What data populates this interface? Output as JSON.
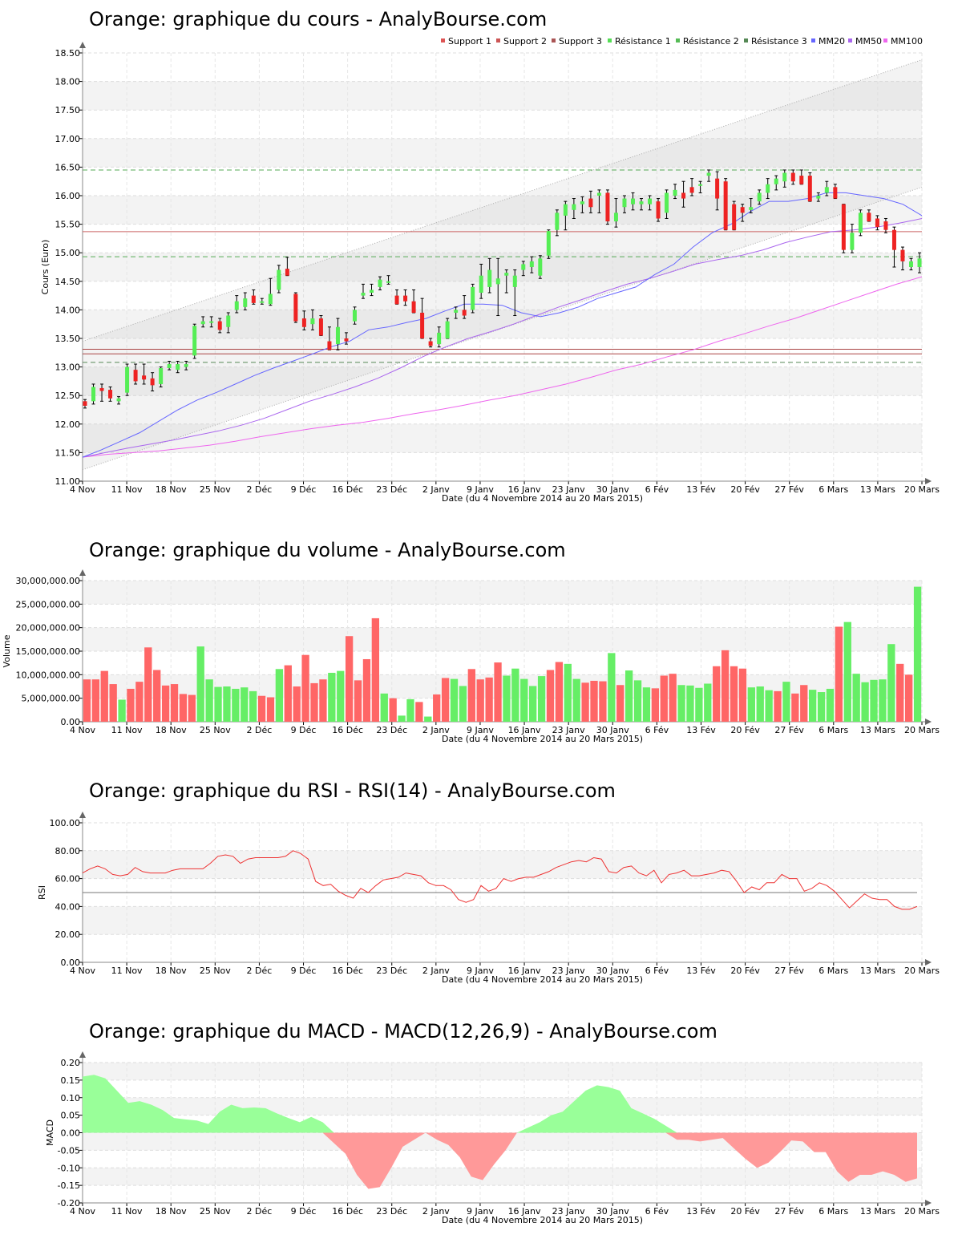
{
  "dates": [
    "4 Nov",
    "11 Nov",
    "18 Nov",
    "25 Nov",
    "2 Déc",
    "9 Déc",
    "16 Déc",
    "23 Déc",
    "2 Janv",
    "9 Janv",
    "16 Janv",
    "23 Janv",
    "30 Janv",
    "6 Fév",
    "13 Fév",
    "20 Fév",
    "27 Fév",
    "6 Mars",
    "13 Mars",
    "20 Mars"
  ],
  "x_axis_label": "Date (du 4 Novembre 2014 au 20 Mars 2015)",
  "colors": {
    "up": "#55ee55",
    "down": "#ee2222",
    "vol_up": "#66ee66",
    "vol_down": "#ff6666",
    "mm20": "#6666ff",
    "mm50": "#aa66ee",
    "mm100": "#ee66ee",
    "rsi": "#ee3333",
    "macd_pos": "#99ff99",
    "macd_neg": "#ff9999"
  },
  "chart_data": [
    {
      "type": "candlestick",
      "title": "Orange: graphique du cours - AnalyBourse.com",
      "ylabel": "Cours (Euro)",
      "xlabel": "Date (du 4 Novembre 2014 au 20 Mars 2015)",
      "ylim": [
        11.0,
        18.5
      ],
      "yticks": [
        "11.00",
        "11.50",
        "12.00",
        "12.50",
        "13.00",
        "13.50",
        "14.00",
        "14.50",
        "15.00",
        "15.50",
        "16.00",
        "16.50",
        "17.00",
        "17.50",
        "18.00",
        "18.50"
      ],
      "legend": [
        "Support 1",
        "Support 2",
        "Support 3",
        "Résistance 1",
        "Résistance 2",
        "Résistance 3",
        "MM20",
        "MM50",
        "MM100"
      ],
      "levels": {
        "support_1": 15.37,
        "support_2": 13.31,
        "support_3": 13.23,
        "resistance_1": 16.45,
        "resistance_2": 14.93,
        "resistance_3": 13.08
      },
      "ohlc": [
        [
          12.4,
          12.43,
          12.28,
          12.32
        ],
        [
          12.4,
          12.7,
          12.35,
          12.65
        ],
        [
          12.63,
          12.7,
          12.4,
          12.58
        ],
        [
          12.6,
          12.65,
          12.4,
          12.45
        ],
        [
          12.4,
          12.48,
          12.35,
          12.45
        ],
        [
          12.55,
          13.05,
          12.5,
          13.0
        ],
        [
          12.95,
          13.05,
          12.7,
          12.75
        ],
        [
          12.85,
          13.05,
          12.7,
          12.78
        ],
        [
          12.8,
          12.9,
          12.58,
          12.68
        ],
        [
          12.7,
          13.0,
          12.65,
          12.98
        ],
        [
          12.98,
          13.1,
          12.95,
          13.05
        ],
        [
          12.95,
          13.1,
          12.9,
          13.05
        ],
        [
          13.0,
          13.1,
          12.95,
          13.05
        ],
        [
          13.2,
          13.75,
          13.15,
          13.72
        ],
        [
          13.75,
          13.88,
          13.7,
          13.8
        ],
        [
          13.78,
          13.88,
          13.7,
          13.8
        ],
        [
          13.8,
          13.85,
          13.6,
          13.65
        ],
        [
          13.7,
          13.95,
          13.6,
          13.9
        ],
        [
          14.0,
          14.25,
          13.95,
          14.15
        ],
        [
          14.05,
          14.3,
          14.0,
          14.2
        ],
        [
          14.25,
          14.35,
          14.1,
          14.12
        ],
        [
          14.15,
          14.2,
          14.1,
          14.15
        ],
        [
          14.1,
          14.55,
          14.08,
          14.28
        ],
        [
          14.35,
          14.78,
          14.3,
          14.7
        ],
        [
          14.72,
          14.92,
          14.6,
          14.6
        ],
        [
          14.28,
          14.3,
          13.78,
          13.8
        ],
        [
          13.85,
          13.98,
          13.65,
          13.7
        ],
        [
          13.75,
          14.0,
          13.65,
          13.85
        ],
        [
          13.85,
          13.9,
          13.55,
          13.55
        ],
        [
          13.45,
          13.7,
          13.3,
          13.3
        ],
        [
          13.4,
          13.85,
          13.3,
          13.7
        ],
        [
          13.5,
          13.6,
          13.4,
          13.45
        ],
        [
          13.8,
          14.05,
          13.75,
          14.0
        ],
        [
          14.25,
          14.45,
          14.2,
          14.3
        ],
        [
          14.3,
          14.45,
          14.25,
          14.35
        ],
        [
          14.4,
          14.58,
          14.35,
          14.53
        ],
        [
          14.5,
          14.6,
          14.45,
          14.5
        ],
        [
          14.25,
          14.35,
          14.1,
          14.1
        ],
        [
          14.25,
          14.35,
          14.08,
          14.15
        ],
        [
          14.15,
          14.35,
          13.95,
          13.95
        ],
        [
          13.95,
          14.2,
          13.5,
          13.5
        ],
        [
          13.45,
          13.5,
          13.35,
          13.37
        ],
        [
          13.4,
          13.7,
          13.35,
          13.6
        ],
        [
          13.5,
          13.85,
          13.5,
          13.8
        ],
        [
          13.95,
          14.05,
          13.85,
          14.0
        ],
        [
          14.0,
          14.25,
          13.85,
          13.9
        ],
        [
          14.0,
          14.45,
          13.95,
          14.4
        ],
        [
          14.3,
          14.8,
          14.2,
          14.6
        ],
        [
          14.4,
          14.9,
          14.3,
          14.7
        ],
        [
          14.45,
          14.9,
          13.9,
          14.55
        ],
        [
          14.6,
          14.7,
          14.3,
          14.65
        ],
        [
          14.4,
          14.7,
          13.9,
          14.6
        ],
        [
          14.7,
          14.85,
          14.6,
          14.8
        ],
        [
          14.75,
          14.93,
          14.65,
          14.85
        ],
        [
          14.6,
          14.95,
          14.55,
          14.9
        ],
        [
          14.95,
          15.4,
          14.9,
          15.38
        ],
        [
          15.4,
          15.75,
          15.3,
          15.7
        ],
        [
          15.65,
          15.9,
          15.4,
          15.85
        ],
        [
          15.75,
          15.95,
          15.6,
          15.85
        ],
        [
          15.85,
          15.98,
          15.7,
          15.9
        ],
        [
          15.95,
          16.08,
          15.7,
          15.8
        ],
        [
          16.0,
          16.1,
          15.7,
          16.05
        ],
        [
          16.05,
          16.1,
          15.5,
          15.55
        ],
        [
          15.55,
          15.95,
          15.45,
          15.7
        ],
        [
          15.8,
          16.0,
          15.7,
          15.95
        ],
        [
          15.85,
          16.05,
          15.75,
          15.95
        ],
        [
          15.85,
          15.95,
          15.75,
          15.9
        ],
        [
          15.85,
          16.0,
          15.75,
          15.95
        ],
        [
          15.9,
          15.95,
          15.55,
          15.6
        ],
        [
          15.7,
          16.1,
          15.6,
          16.05
        ],
        [
          16.0,
          16.2,
          15.95,
          16.1
        ],
        [
          16.05,
          16.25,
          15.8,
          15.95
        ],
        [
          16.15,
          16.3,
          16.0,
          16.05
        ],
        [
          16.2,
          16.25,
          16.05,
          16.2
        ],
        [
          16.35,
          16.45,
          16.25,
          16.4
        ],
        [
          16.3,
          16.42,
          15.75,
          15.95
        ],
        [
          16.25,
          16.3,
          15.4,
          15.4
        ],
        [
          15.85,
          15.9,
          15.4,
          15.4
        ],
        [
          15.8,
          15.85,
          15.55,
          15.7
        ],
        [
          15.75,
          15.95,
          15.7,
          15.8
        ],
        [
          15.9,
          16.1,
          15.85,
          16.05
        ],
        [
          16.05,
          16.3,
          15.95,
          16.2
        ],
        [
          16.2,
          16.35,
          16.1,
          16.3
        ],
        [
          16.25,
          16.45,
          16.15,
          16.4
        ],
        [
          16.4,
          16.45,
          16.2,
          16.25
        ],
        [
          16.35,
          16.45,
          16.2,
          16.2
        ],
        [
          16.35,
          16.4,
          15.9,
          15.9
        ],
        [
          15.95,
          16.05,
          15.9,
          16.0
        ],
        [
          16.05,
          16.25,
          16.0,
          16.15
        ],
        [
          16.15,
          16.2,
          15.95,
          15.95
        ],
        [
          15.85,
          15.85,
          15.0,
          15.05
        ],
        [
          15.05,
          15.5,
          15.0,
          15.35
        ],
        [
          15.35,
          15.75,
          15.3,
          15.7
        ],
        [
          15.7,
          15.75,
          15.55,
          15.55
        ],
        [
          15.6,
          15.65,
          15.4,
          15.45
        ],
        [
          15.55,
          15.6,
          15.35,
          15.4
        ],
        [
          15.4,
          15.45,
          14.75,
          15.05
        ],
        [
          15.05,
          15.1,
          14.7,
          14.85
        ],
        [
          14.75,
          14.9,
          14.7,
          14.85
        ],
        [
          14.75,
          15.0,
          14.65,
          14.9
        ]
      ],
      "mm20": [
        11.42,
        11.55,
        11.7,
        11.85,
        12.05,
        12.25,
        12.42,
        12.55,
        12.7,
        12.85,
        12.98,
        13.1,
        13.22,
        13.35,
        13.45,
        13.65,
        13.7,
        13.78,
        13.85,
        13.98,
        14.1,
        14.1,
        14.08,
        13.95,
        13.88,
        13.95,
        14.05,
        14.2,
        14.3,
        14.4,
        14.62,
        14.8,
        15.1,
        15.35,
        15.5,
        15.72,
        15.9,
        15.9,
        15.95,
        16.05,
        16.05,
        16.0,
        15.95,
        15.85,
        15.65
      ],
      "mm50": [
        11.42,
        11.5,
        11.58,
        11.65,
        11.72,
        11.8,
        11.88,
        11.98,
        12.1,
        12.25,
        12.4,
        12.52,
        12.65,
        12.8,
        12.98,
        13.18,
        13.35,
        13.5,
        13.62,
        13.75,
        13.9,
        14.05,
        14.18,
        14.32,
        14.45,
        14.55,
        14.67,
        14.8,
        14.88,
        14.95,
        15.05,
        15.18,
        15.28,
        15.37,
        15.4,
        15.45,
        15.52,
        15.6
      ],
      "mm100": [
        11.42,
        11.47,
        11.5,
        11.53,
        11.58,
        11.63,
        11.7,
        11.78,
        11.85,
        11.92,
        11.98,
        12.03,
        12.1,
        12.18,
        12.25,
        12.33,
        12.42,
        12.5,
        12.6,
        12.7,
        12.82,
        12.95,
        13.05,
        13.18,
        13.3,
        13.45,
        13.58,
        13.72,
        13.85,
        14.0,
        14.15,
        14.3,
        14.45,
        14.58
      ],
      "channel_upper": [
        13.45,
        18.38
      ],
      "channel_lower": [
        11.2,
        16.15
      ]
    },
    {
      "type": "bar",
      "title": "Orange: graphique du volume - AnalyBourse.com",
      "ylabel": "Volume",
      "xlabel": "Date (du 4 Novembre 2014 au 20 Mars 2015)",
      "ylim": [
        0,
        30000000
      ],
      "yticks": [
        "0.00",
        "5,000,000.00",
        "10,000,000.00",
        "15,000,000.00",
        "20,000,000.00",
        "25,000,000.00",
        "30,000,000.00"
      ],
      "values": [
        9.0,
        9.0,
        10.8,
        8.0,
        4.7,
        7.0,
        8.5,
        15.8,
        11.0,
        7.7,
        8.0,
        5.9,
        5.7,
        16.0,
        9.0,
        7.4,
        7.5,
        7.0,
        7.3,
        6.5,
        5.5,
        5.2,
        11.2,
        12.0,
        7.5,
        14.2,
        8.2,
        9.0,
        10.4,
        10.8,
        18.2,
        8.8,
        13.3,
        22.0,
        6.0,
        5.0,
        1.3,
        4.8,
        4.2,
        1.1,
        5.8,
        9.3,
        9.1,
        7.6,
        11.2,
        9.0,
        9.4,
        12.6,
        9.8,
        11.3,
        9.1,
        7.6,
        9.7,
        11.0,
        12.7,
        12.3,
        9.1,
        8.3,
        8.7,
        8.6,
        14.6,
        7.8,
        10.9,
        8.8,
        7.3,
        7.1,
        9.8,
        10.2,
        7.8,
        7.7,
        7.2,
        8.1,
        11.8,
        15.2,
        11.8,
        11.3,
        7.3,
        7.5,
        6.7,
        6.5,
        8.5,
        6.0,
        7.8,
        6.8,
        6.3,
        7.0,
        20.2,
        21.2,
        10.2,
        8.4,
        8.9,
        9.0,
        16.5,
        12.3,
        10.0,
        28.7
      ],
      "directions": "ddddudddddddduuuuuuudduddddduudddduduududduudddduuuuudduuddduduuuddduuuudddduuududduuuduuuuuuddu"
    },
    {
      "type": "line",
      "title": "Orange: graphique du RSI - RSI(14) - AnalyBourse.com",
      "ylabel": "RSI",
      "xlabel": "Date (du 4 Novembre 2014 au 20 Mars 2015)",
      "ylim": [
        0,
        100
      ],
      "yticks": [
        "0.00",
        "20.00",
        "40.00",
        "60.00",
        "80.00",
        "100.00"
      ],
      "reference_line": 50,
      "values": [
        64,
        67,
        69,
        67,
        63,
        62,
        63,
        68,
        65,
        64,
        64,
        64,
        66,
        67,
        67,
        67,
        67,
        71,
        76,
        77,
        76,
        71,
        74,
        75,
        75,
        75,
        75,
        76,
        80,
        78,
        74,
        58,
        55,
        56,
        51,
        48,
        46,
        53,
        50,
        55,
        59,
        60,
        61,
        64,
        63,
        62,
        57,
        55,
        55,
        52,
        45,
        43,
        45,
        55,
        51,
        53,
        60,
        58,
        60,
        61,
        61,
        63,
        65,
        68,
        70,
        72,
        73,
        72,
        75,
        74,
        65,
        64,
        68,
        69,
        64,
        62,
        66,
        57,
        63,
        64,
        66,
        62,
        62,
        63,
        64,
        66,
        65,
        58,
        50,
        54,
        52,
        57,
        57,
        63,
        60,
        60,
        51,
        53,
        57,
        55,
        51,
        45,
        39,
        44,
        49,
        46,
        45,
        45,
        40,
        38,
        38,
        40
      ],
      "axis_labels_hidden": false
    },
    {
      "type": "area",
      "title": "Orange: graphique du MACD - MACD(12,26,9) - AnalyBourse.com",
      "ylabel": "MACD",
      "xlabel": "Date (du 4 Novembre 2014 au 20 Mars 2015)",
      "ylim": [
        -0.2,
        0.2
      ],
      "yticks": [
        "-0.20",
        "-0.15",
        "-0.10",
        "-0.05",
        "0.00",
        "0.05",
        "0.10",
        "0.15",
        "0.20"
      ],
      "values": [
        0.16,
        0.165,
        0.155,
        0.12,
        0.085,
        0.09,
        0.08,
        0.065,
        0.042,
        0.038,
        0.035,
        0.025,
        0.06,
        0.08,
        0.07,
        0.072,
        0.07,
        0.055,
        0.042,
        0.03,
        0.045,
        0.03,
        -0.03,
        -0.06,
        -0.12,
        -0.16,
        -0.155,
        -0.1,
        -0.04,
        -0.02,
        0.0,
        -0.02,
        -0.035,
        -0.07,
        -0.125,
        -0.135,
        -0.09,
        -0.05,
        0.0,
        0.015,
        0.03,
        0.05,
        0.06,
        0.09,
        0.12,
        0.135,
        0.13,
        0.12,
        0.07,
        0.055,
        0.04,
        0.02,
        -0.02,
        -0.02,
        -0.025,
        -0.02,
        -0.015,
        -0.045,
        -0.075,
        -0.1,
        -0.085,
        -0.055,
        -0.022,
        -0.025,
        -0.055,
        -0.055,
        -0.11,
        -0.14,
        -0.12,
        -0.12,
        -0.11,
        -0.12,
        -0.14,
        -0.13
      ]
    }
  ]
}
